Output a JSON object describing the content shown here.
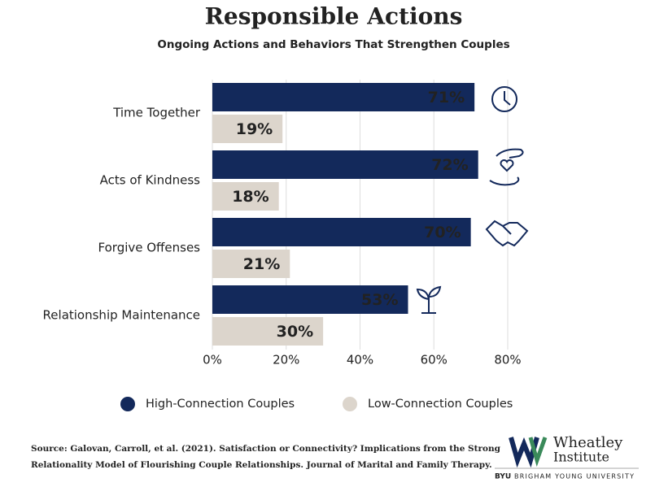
{
  "chart_data": {
    "type": "bar",
    "orientation": "horizontal",
    "title": "Responsible Actions",
    "subtitle": "Ongoing Actions and Behaviors That Strengthen Couples",
    "categories": [
      "Time Together",
      "Acts of Kindness",
      "Forgive Offenses",
      "Relationship Maintenance"
    ],
    "series": [
      {
        "name": "High-Connection Couples",
        "color": "#13295b",
        "values": [
          71,
          72,
          70,
          53
        ],
        "value_labels": [
          "71%",
          "72%",
          "70%",
          "53%"
        ]
      },
      {
        "name": "Low-Connection Couples",
        "color": "#dcd5cc",
        "values": [
          19,
          18,
          21,
          30
        ],
        "value_labels": [
          "19%",
          "18%",
          "21%",
          "30%"
        ]
      }
    ],
    "xlim": [
      0,
      80
    ],
    "xticks": [
      {
        "value": 0,
        "label": "0%"
      },
      {
        "value": 20,
        "label": "20%"
      },
      {
        "value": 40,
        "label": "40%"
      },
      {
        "value": 60,
        "label": "60%"
      },
      {
        "value": 80,
        "label": "80%"
      }
    ],
    "grid": true
  },
  "source": [
    "Source: Galovan, Carroll, et al. (2021). Satisfaction or Connectivity? Implications from the Strong",
    "Relationality Model of Flourishing Couple Relationships. Journal of Marital and Family Therapy."
  ],
  "logo": {
    "lines": [
      "Wheatley",
      "Institute"
    ],
    "byu": "BYU",
    "university": "BRIGHAM YOUNG UNIVERSITY"
  }
}
